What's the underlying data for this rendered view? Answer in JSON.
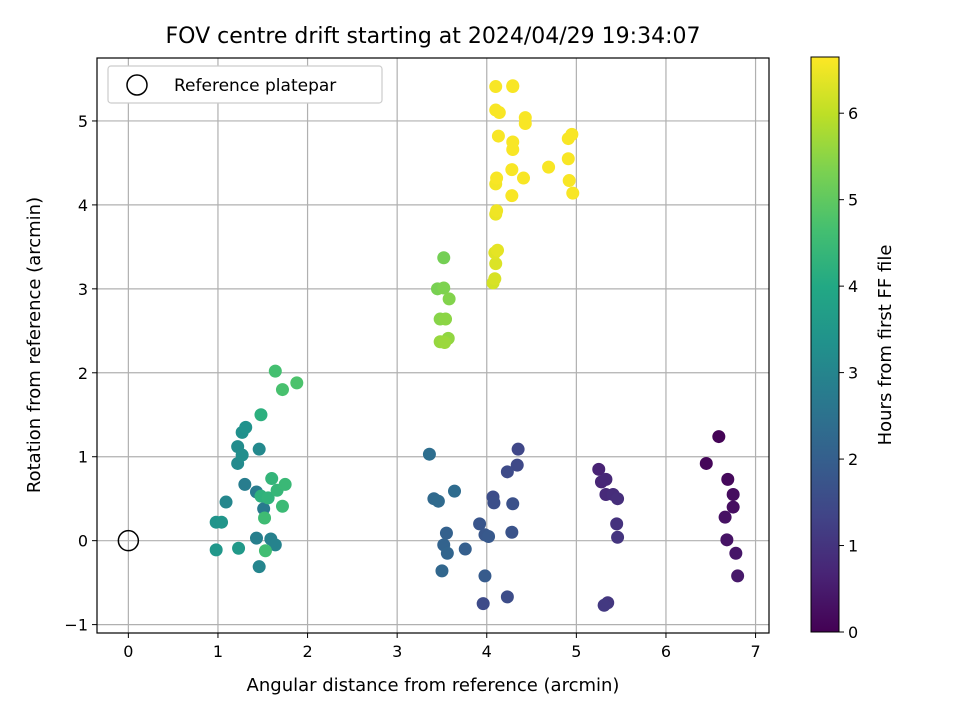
{
  "chart_data": {
    "type": "scatter",
    "title": "FOV centre drift starting at 2024/04/29 19:34:07",
    "xlabel": "Angular distance from reference (arcmin)",
    "ylabel": "Rotation from reference (arcmin)",
    "xlim": [
      -0.35,
      7.15
    ],
    "ylim": [
      -1.1,
      5.75
    ],
    "x_ticks": [
      0,
      1,
      2,
      3,
      4,
      5,
      6,
      7
    ],
    "y_ticks": [
      -1,
      0,
      1,
      2,
      3,
      4,
      5
    ],
    "grid": true,
    "legend": {
      "position": "top-left",
      "entries": [
        "Reference platepar"
      ]
    },
    "reference_point": {
      "x": 0,
      "y": 0
    },
    "colorbar": {
      "label": "Hours from first FF file",
      "colormap": "viridis",
      "range": [
        0,
        6.65
      ],
      "ticks": [
        0,
        1,
        2,
        3,
        4,
        5,
        6
      ]
    },
    "points": [
      {
        "x": 6.59,
        "y": 1.24,
        "c": 0.05
      },
      {
        "x": 6.45,
        "y": 0.92,
        "c": 0.1
      },
      {
        "x": 6.69,
        "y": 0.73,
        "c": 0.15
      },
      {
        "x": 6.75,
        "y": 0.55,
        "c": 0.2
      },
      {
        "x": 6.75,
        "y": 0.4,
        "c": 0.25
      },
      {
        "x": 6.66,
        "y": 0.28,
        "c": 0.3
      },
      {
        "x": 6.68,
        "y": 0.01,
        "c": 0.35
      },
      {
        "x": 6.78,
        "y": -0.15,
        "c": 0.4
      },
      {
        "x": 6.8,
        "y": -0.42,
        "c": 0.45
      },
      {
        "x": 5.25,
        "y": 0.85,
        "c": 0.65
      },
      {
        "x": 5.28,
        "y": 0.7,
        "c": 0.7
      },
      {
        "x": 5.33,
        "y": 0.73,
        "c": 0.75
      },
      {
        "x": 5.33,
        "y": 0.55,
        "c": 0.8
      },
      {
        "x": 5.41,
        "y": 0.55,
        "c": 0.85
      },
      {
        "x": 5.46,
        "y": 0.5,
        "c": 0.9
      },
      {
        "x": 5.45,
        "y": 0.2,
        "c": 0.95
      },
      {
        "x": 5.46,
        "y": 0.04,
        "c": 1.0
      },
      {
        "x": 5.35,
        "y": -0.74,
        "c": 1.05
      },
      {
        "x": 5.31,
        "y": -0.77,
        "c": 1.1
      },
      {
        "x": 4.35,
        "y": 1.09,
        "c": 1.4
      },
      {
        "x": 4.34,
        "y": 0.9,
        "c": 1.45
      },
      {
        "x": 4.23,
        "y": 0.82,
        "c": 1.5
      },
      {
        "x": 4.07,
        "y": 0.52,
        "c": 1.55
      },
      {
        "x": 4.08,
        "y": 0.45,
        "c": 1.6
      },
      {
        "x": 4.29,
        "y": 0.44,
        "c": 1.65
      },
      {
        "x": 4.28,
        "y": 0.1,
        "c": 1.7
      },
      {
        "x": 3.92,
        "y": 0.2,
        "c": 1.75
      },
      {
        "x": 3.98,
        "y": 0.07,
        "c": 1.8
      },
      {
        "x": 4.02,
        "y": 0.05,
        "c": 1.85
      },
      {
        "x": 3.98,
        "y": -0.42,
        "c": 1.9
      },
      {
        "x": 3.96,
        "y": -0.75,
        "c": 1.5
      },
      {
        "x": 4.23,
        "y": -0.67,
        "c": 1.55
      },
      {
        "x": 3.76,
        "y": -0.1,
        "c": 2.0
      },
      {
        "x": 3.55,
        "y": 0.09,
        "c": 2.05
      },
      {
        "x": 3.52,
        "y": -0.05,
        "c": 2.1
      },
      {
        "x": 3.56,
        "y": -0.15,
        "c": 2.15
      },
      {
        "x": 3.5,
        "y": -0.36,
        "c": 2.2
      },
      {
        "x": 3.41,
        "y": 0.5,
        "c": 2.25
      },
      {
        "x": 3.46,
        "y": 0.47,
        "c": 2.3
      },
      {
        "x": 3.64,
        "y": 0.59,
        "c": 2.35
      },
      {
        "x": 3.36,
        "y": 1.03,
        "c": 2.4
      },
      {
        "x": 1.51,
        "y": 0.38,
        "c": 2.7
      },
      {
        "x": 1.43,
        "y": 0.58,
        "c": 2.75
      },
      {
        "x": 1.3,
        "y": 0.67,
        "c": 2.8
      },
      {
        "x": 1.43,
        "y": 0.03,
        "c": 2.85
      },
      {
        "x": 1.59,
        "y": 0.02,
        "c": 2.9
      },
      {
        "x": 1.64,
        "y": -0.05,
        "c": 2.95
      },
      {
        "x": 1.46,
        "y": -0.31,
        "c": 3.0
      },
      {
        "x": 1.09,
        "y": 0.46,
        "c": 3.05
      },
      {
        "x": 1.46,
        "y": 1.09,
        "c": 3.1
      },
      {
        "x": 1.22,
        "y": 0.92,
        "c": 3.15
      },
      {
        "x": 1.22,
        "y": 1.12,
        "c": 3.2
      },
      {
        "x": 1.27,
        "y": 1.02,
        "c": 3.25
      },
      {
        "x": 1.27,
        "y": 1.29,
        "c": 3.3
      },
      {
        "x": 1.31,
        "y": 1.35,
        "c": 3.35
      },
      {
        "x": 0.98,
        "y": 0.22,
        "c": 3.4
      },
      {
        "x": 1.04,
        "y": 0.22,
        "c": 3.45
      },
      {
        "x": 0.98,
        "y": -0.11,
        "c": 3.5
      },
      {
        "x": 1.23,
        "y": -0.09,
        "c": 3.55
      },
      {
        "x": 1.48,
        "y": 1.5,
        "c": 4.2
      },
      {
        "x": 1.48,
        "y": 0.53,
        "c": 4.25
      },
      {
        "x": 1.56,
        "y": 0.51,
        "c": 4.3
      },
      {
        "x": 1.6,
        "y": 0.74,
        "c": 4.35
      },
      {
        "x": 1.66,
        "y": 0.6,
        "c": 4.4
      },
      {
        "x": 1.75,
        "y": 0.67,
        "c": 4.45
      },
      {
        "x": 1.72,
        "y": 0.41,
        "c": 4.5
      },
      {
        "x": 1.52,
        "y": 0.27,
        "c": 4.55
      },
      {
        "x": 1.53,
        "y": -0.12,
        "c": 4.6
      },
      {
        "x": 1.64,
        "y": 2.02,
        "c": 4.65
      },
      {
        "x": 1.72,
        "y": 1.8,
        "c": 4.7
      },
      {
        "x": 1.88,
        "y": 1.88,
        "c": 4.75
      },
      {
        "x": 3.52,
        "y": 3.37,
        "c": 5.25
      },
      {
        "x": 3.45,
        "y": 3.0,
        "c": 5.3
      },
      {
        "x": 3.52,
        "y": 3.01,
        "c": 5.35
      },
      {
        "x": 3.58,
        "y": 2.88,
        "c": 5.4
      },
      {
        "x": 3.48,
        "y": 2.64,
        "c": 5.45
      },
      {
        "x": 3.54,
        "y": 2.64,
        "c": 5.5
      },
      {
        "x": 3.57,
        "y": 2.41,
        "c": 5.55
      },
      {
        "x": 3.48,
        "y": 2.37,
        "c": 5.6
      },
      {
        "x": 3.53,
        "y": 2.36,
        "c": 5.65
      },
      {
        "x": 4.07,
        "y": 3.07,
        "c": 6.2
      },
      {
        "x": 4.09,
        "y": 3.12,
        "c": 6.25
      },
      {
        "x": 4.1,
        "y": 3.3,
        "c": 6.3
      },
      {
        "x": 4.09,
        "y": 3.43,
        "c": 6.35
      },
      {
        "x": 4.12,
        "y": 3.46,
        "c": 6.4
      },
      {
        "x": 4.1,
        "y": 3.89,
        "c": 6.45
      },
      {
        "x": 4.11,
        "y": 3.93,
        "c": 6.5
      },
      {
        "x": 4.1,
        "y": 4.25,
        "c": 6.55
      },
      {
        "x": 4.11,
        "y": 4.32,
        "c": 6.6
      },
      {
        "x": 4.28,
        "y": 4.11,
        "c": 6.6
      },
      {
        "x": 4.28,
        "y": 4.42,
        "c": 6.6
      },
      {
        "x": 4.41,
        "y": 4.32,
        "c": 6.6
      },
      {
        "x": 4.29,
        "y": 4.66,
        "c": 6.6
      },
      {
        "x": 4.29,
        "y": 4.75,
        "c": 6.6
      },
      {
        "x": 4.13,
        "y": 4.82,
        "c": 6.6
      },
      {
        "x": 4.43,
        "y": 4.97,
        "c": 6.6
      },
      {
        "x": 4.43,
        "y": 5.04,
        "c": 6.6
      },
      {
        "x": 4.1,
        "y": 5.13,
        "c": 6.6
      },
      {
        "x": 4.14,
        "y": 5.1,
        "c": 6.6
      },
      {
        "x": 4.1,
        "y": 5.41,
        "c": 6.6
      },
      {
        "x": 4.29,
        "y": 5.42,
        "c": 6.6
      },
      {
        "x": 4.29,
        "y": 5.41,
        "c": 6.6
      },
      {
        "x": 4.69,
        "y": 4.45,
        "c": 6.6
      },
      {
        "x": 4.91,
        "y": 4.55,
        "c": 6.6
      },
      {
        "x": 4.92,
        "y": 4.29,
        "c": 6.6
      },
      {
        "x": 4.96,
        "y": 4.14,
        "c": 6.6
      },
      {
        "x": 4.91,
        "y": 4.79,
        "c": 6.6
      },
      {
        "x": 4.95,
        "y": 4.84,
        "c": 6.6
      }
    ]
  }
}
